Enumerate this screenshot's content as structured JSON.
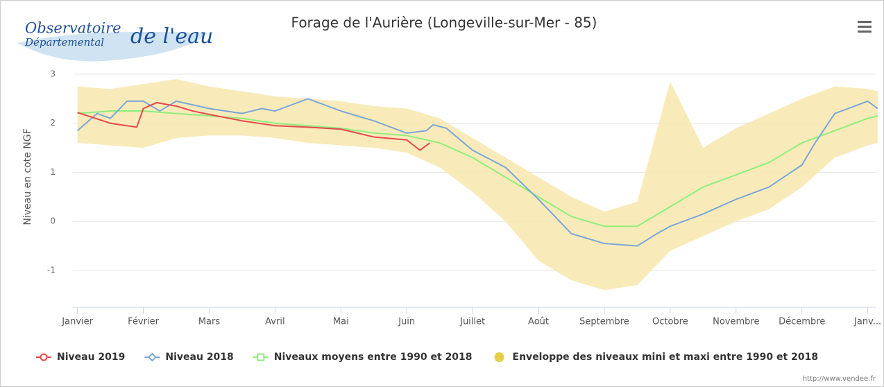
{
  "logo": {
    "line1": "Observatoire",
    "line2": "Départemental",
    "line3": "de l'eau"
  },
  "source": "http://www.vendee.fr",
  "chart_data": {
    "type": "line",
    "title": "Forage de l'Aurière (Longeville-sur-Mer - 85)",
    "ylabel": "Niveau en cote NGF",
    "xlim": [
      -0.07,
      12.12
    ],
    "xticks": [
      {
        "value": 0,
        "label": "Janvier"
      },
      {
        "value": 1,
        "label": "Février"
      },
      {
        "value": 2,
        "label": "Mars"
      },
      {
        "value": 3,
        "label": "Avril"
      },
      {
        "value": 4,
        "label": "Mai"
      },
      {
        "value": 5,
        "label": "Juin"
      },
      {
        "value": 6,
        "label": "Juillet"
      },
      {
        "value": 7,
        "label": "Août"
      },
      {
        "value": 8,
        "label": "Septembre"
      },
      {
        "value": 9,
        "label": "Octobre"
      },
      {
        "value": 10,
        "label": "Novembre"
      },
      {
        "value": 11,
        "label": "Décembre"
      },
      {
        "value": 12,
        "label": "Janv..."
      }
    ],
    "ylim": [
      -1.75,
      3
    ],
    "yticks": [
      -1,
      0,
      1,
      2,
      3
    ],
    "grid": true,
    "legend": "bottom",
    "envelope": {
      "name": "Enveloppe des niveaux mini et maxi entre 1990 et 2018",
      "color": "#f7e8ad",
      "legend_color": "#e6cf45",
      "x": [
        0,
        0.5,
        1,
        1.5,
        2,
        2.5,
        3,
        3.5,
        4,
        4.5,
        5,
        5.5,
        6,
        6.5,
        7,
        7.5,
        8,
        8.5,
        9,
        9.5,
        10,
        10.5,
        11,
        11.5,
        12,
        12.15
      ],
      "high": [
        2.75,
        2.7,
        2.8,
        2.9,
        2.75,
        2.65,
        2.55,
        2.5,
        2.45,
        2.35,
        2.3,
        2.1,
        1.7,
        1.3,
        0.9,
        0.5,
        0.2,
        0.4,
        2.85,
        1.5,
        1.9,
        2.2,
        2.5,
        2.75,
        2.7,
        2.65
      ],
      "low": [
        1.6,
        1.55,
        1.5,
        1.7,
        1.75,
        1.75,
        1.7,
        1.6,
        1.55,
        1.5,
        1.4,
        1.1,
        0.6,
        0.0,
        -0.8,
        -1.2,
        -1.4,
        -1.3,
        -0.6,
        -0.3,
        0.0,
        0.25,
        0.7,
        1.3,
        1.55,
        1.6
      ]
    },
    "series": [
      {
        "name": "Niveau 2019",
        "color": "#e8474d",
        "marker": "circle",
        "x": [
          0,
          0.5,
          0.75,
          0.9,
          1.0,
          1.2,
          1.5,
          1.75,
          2.0,
          2.5,
          3.0,
          3.5,
          4.0,
          4.5,
          5.0,
          5.2,
          5.35
        ],
        "values": [
          2.22,
          2.0,
          1.95,
          1.92,
          2.3,
          2.42,
          2.35,
          2.25,
          2.18,
          2.05,
          1.95,
          1.92,
          1.88,
          1.72,
          1.66,
          1.45,
          1.6
        ]
      },
      {
        "name": "Niveau 2018",
        "color": "#7ca6d8",
        "marker": "diamond",
        "x": [
          0,
          0.3,
          0.5,
          0.75,
          1.0,
          1.25,
          1.5,
          2.0,
          2.5,
          2.8,
          3.0,
          3.3,
          3.5,
          4.0,
          4.5,
          5.0,
          5.3,
          5.4,
          5.6,
          6.0,
          6.5,
          7.0,
          7.5,
          8.0,
          8.5,
          8.8,
          9.0,
          9.5,
          10.0,
          10.5,
          11.0,
          11.2,
          11.5,
          11.7,
          12.0,
          12.15
        ],
        "values": [
          1.85,
          2.2,
          2.1,
          2.45,
          2.45,
          2.25,
          2.45,
          2.3,
          2.2,
          2.3,
          2.25,
          2.4,
          2.5,
          2.25,
          2.05,
          1.8,
          1.85,
          1.97,
          1.9,
          1.45,
          1.1,
          0.45,
          -0.25,
          -0.45,
          -0.5,
          -0.25,
          -0.1,
          0.15,
          0.45,
          0.7,
          1.15,
          1.6,
          2.2,
          2.3,
          2.45,
          2.3
        ]
      },
      {
        "name": "Niveaux moyens entre 1990 et 2018",
        "color": "#90ed7d",
        "marker": "square",
        "x": [
          0,
          0.5,
          1,
          1.5,
          2,
          2.5,
          3,
          3.5,
          4,
          4.5,
          5,
          5.5,
          6,
          6.5,
          7,
          7.5,
          8,
          8.5,
          9,
          9.5,
          10,
          10.5,
          11,
          11.5,
          12,
          12.15
        ],
        "values": [
          2.2,
          2.25,
          2.25,
          2.2,
          2.15,
          2.1,
          2.0,
          1.95,
          1.9,
          1.8,
          1.75,
          1.6,
          1.3,
          0.9,
          0.5,
          0.1,
          -0.1,
          -0.1,
          0.3,
          0.7,
          0.95,
          1.2,
          1.6,
          1.85,
          2.1,
          2.15
        ]
      }
    ]
  }
}
